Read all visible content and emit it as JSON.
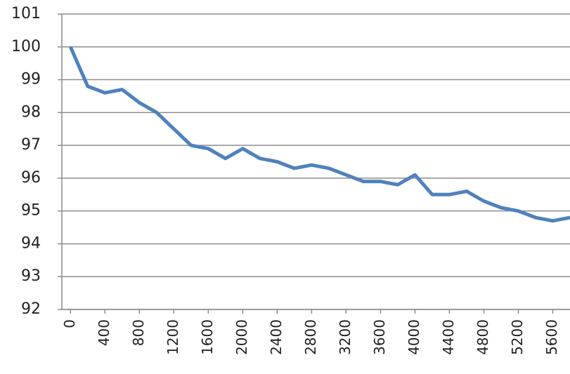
{
  "chart_data": {
    "type": "line",
    "x": [
      0,
      200,
      400,
      600,
      800,
      1000,
      1200,
      1400,
      1600,
      1800,
      2000,
      2200,
      2400,
      2600,
      2800,
      3000,
      3200,
      3400,
      3600,
      3800,
      4000,
      4200,
      4400,
      4600,
      4800,
      5000,
      5200,
      5400,
      5600,
      5800
    ],
    "series": [
      {
        "color": "#4f81bd",
        "values": [
          100,
          98.8,
          98.6,
          98.7,
          98.3,
          98.0,
          97.5,
          97.0,
          96.9,
          96.6,
          96.9,
          96.6,
          96.5,
          96.3,
          96.4,
          96.3,
          96.1,
          95.9,
          95.9,
          95.8,
          96.1,
          95.5,
          95.5,
          95.6,
          95.3,
          95.1,
          95.0,
          94.8,
          94.7,
          94.8
        ]
      }
    ],
    "xlim": [
      -100,
      5800
    ],
    "xticks": [
      0,
      400,
      800,
      1200,
      1600,
      2000,
      2400,
      2800,
      3200,
      3600,
      4000,
      4400,
      4800,
      5200,
      5600
    ],
    "ylim": [
      92,
      101
    ],
    "yticks": [
      92,
      93,
      94,
      95,
      96,
      97,
      98,
      99,
      100,
      101
    ],
    "grid": true
  }
}
